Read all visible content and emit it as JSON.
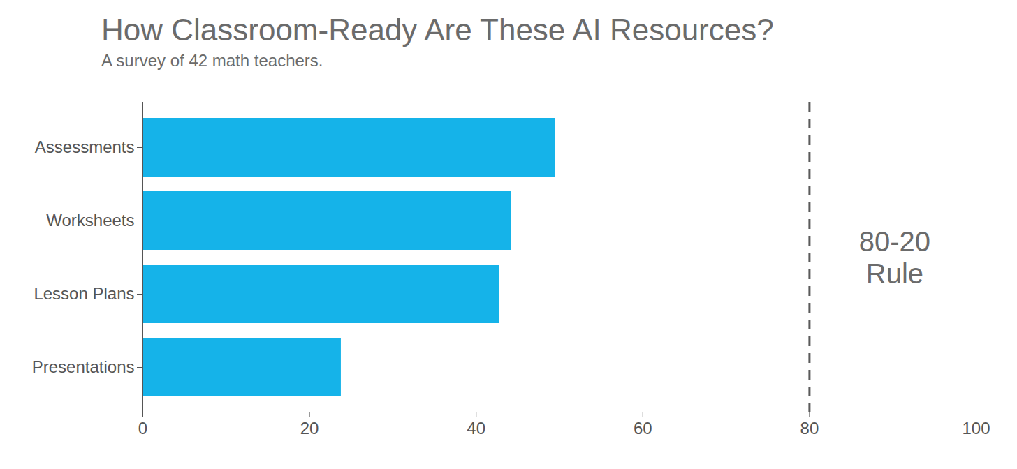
{
  "chart_data": {
    "type": "bar",
    "orientation": "horizontal",
    "title": "How Classroom-Ready Are These AI Resources?",
    "subtitle": "A survey of 42 math teachers.",
    "categories": [
      "Assessments",
      "Worksheets",
      "Lesson Plans",
      "Presentations"
    ],
    "values": [
      49.5,
      44.2,
      42.8,
      23.8
    ],
    "color": "#15b3e9",
    "xlim": [
      0,
      100
    ],
    "xticks": [
      0,
      20,
      40,
      60,
      80,
      100
    ],
    "grid": false,
    "annotations": [
      {
        "x": 80,
        "text": "80-20 Rule",
        "line_style": "dashed"
      }
    ]
  }
}
